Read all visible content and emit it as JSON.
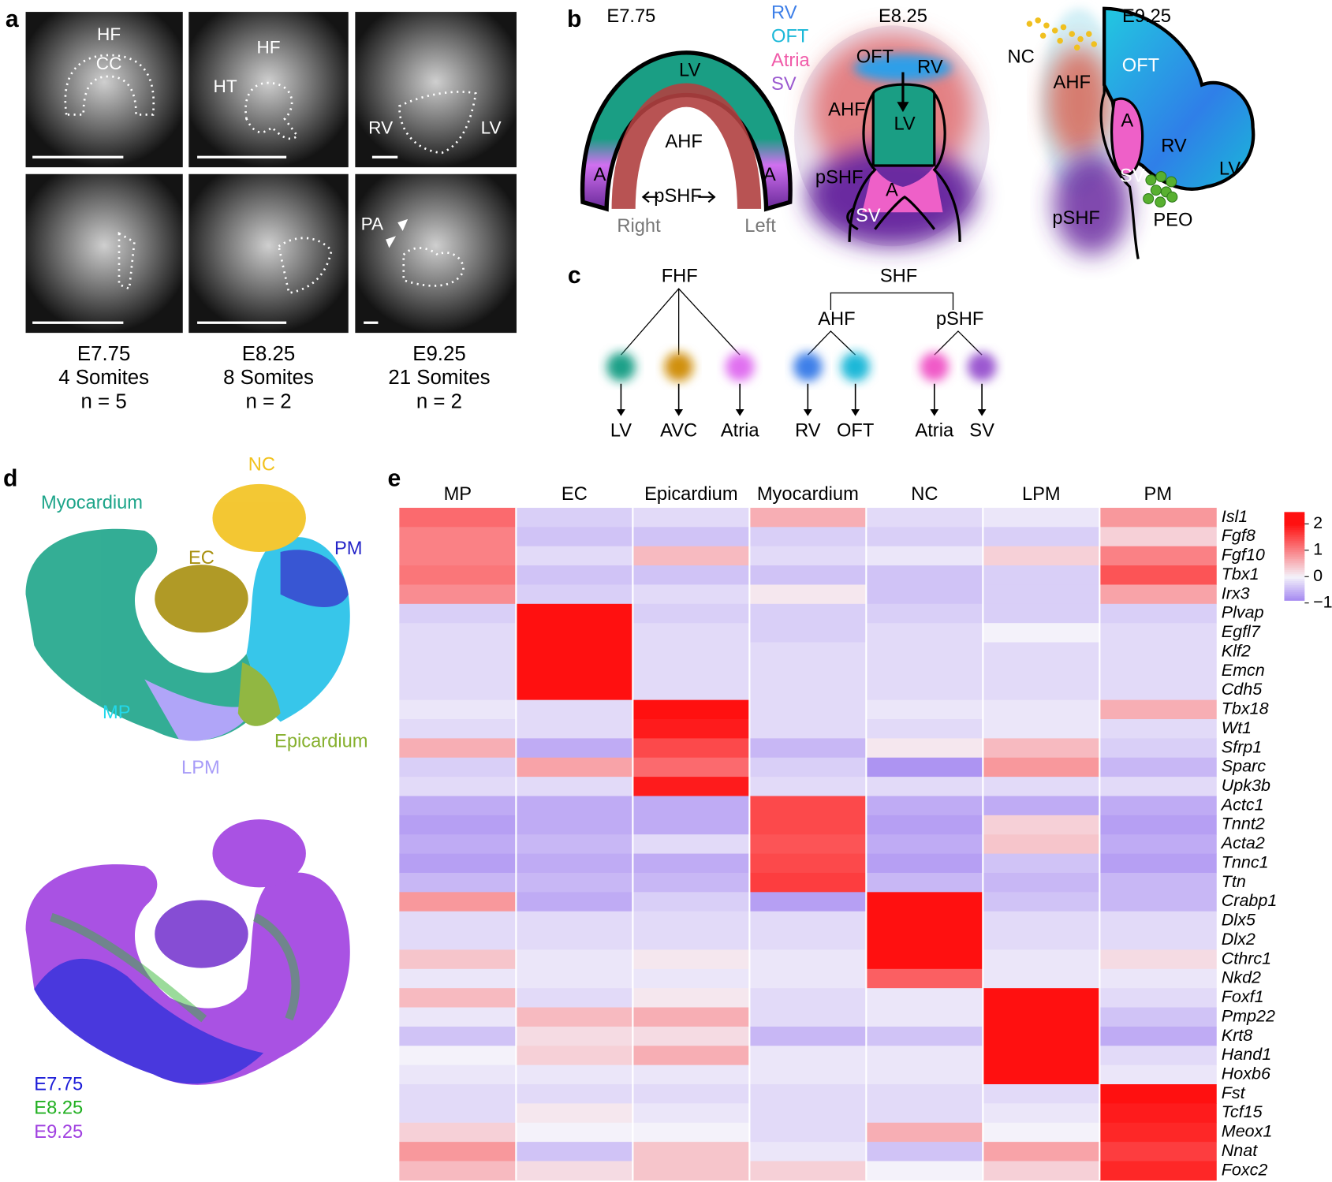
{
  "panel_a": {
    "label": "a",
    "images": [
      {
        "labels": [
          "HF",
          "CC"
        ]
      },
      {
        "labels": [
          "HF",
          "HT"
        ]
      },
      {
        "labels": [
          "RV",
          "LV"
        ]
      },
      {
        "labels": []
      },
      {
        "labels": []
      },
      {
        "labels": [
          "PA"
        ]
      }
    ],
    "captions": [
      {
        "stage": "E7.75",
        "somites": "4 Somites",
        "n": "n = 5"
      },
      {
        "stage": "E8.25",
        "somites": "8 Somites",
        "n": "n = 2"
      },
      {
        "stage": "E9.25",
        "somites": "21 Somites",
        "n": "n = 2"
      }
    ]
  },
  "panel_b": {
    "label": "b",
    "legend": [
      "RV",
      "OFT",
      "Atria",
      "SV"
    ],
    "e775": {
      "stage": "E7.75",
      "labels": [
        "LV",
        "AHF",
        "A",
        "A",
        "pSHF",
        "Right",
        "Left"
      ]
    },
    "e825": {
      "stage": "E8.25",
      "labels": [
        "OFT",
        "RV",
        "AHF",
        "LV",
        "pSHF",
        "A",
        "SV"
      ]
    },
    "e925": {
      "stage": "E9.25",
      "labels": [
        "NC",
        "AHF",
        "OFT",
        "A",
        "RV",
        "LV",
        "SV",
        "pSHF",
        "PEO"
      ]
    }
  },
  "panel_c": {
    "label": "c",
    "fhf": {
      "label": "FHF",
      "children": [
        "LV",
        "AVC",
        "Atria"
      ]
    },
    "shf": {
      "label": "SHF",
      "branches": [
        {
          "label": "AHF",
          "children": [
            "RV",
            "OFT"
          ]
        },
        {
          "label": "pSHF",
          "children": [
            "Atria",
            "SV"
          ]
        }
      ]
    }
  },
  "panel_d": {
    "label": "d",
    "clusters": [
      {
        "name": "Myocardium",
        "color": "#1ea58a"
      },
      {
        "name": "NC",
        "color": "#f2c21e"
      },
      {
        "name": "EC",
        "color": "#a8900f"
      },
      {
        "name": "PM",
        "color": "#2424c8"
      },
      {
        "name": "MP",
        "color": "#22d8ea"
      },
      {
        "name": "Epicardium",
        "color": "#86b02e"
      },
      {
        "name": "LPM",
        "color": "#a89cf8"
      }
    ],
    "legend": [
      {
        "name": "E7.75",
        "color": "#1c1cd8"
      },
      {
        "name": "E8.25",
        "color": "#22b022"
      },
      {
        "name": "E9.25",
        "color": "#a040e0"
      }
    ]
  },
  "panel_e": {
    "label": "e",
    "type": "heatmap",
    "columns": [
      "MP",
      "EC",
      "Epicardium",
      "Myocardium",
      "NC",
      "LPM",
      "PM"
    ],
    "rows": [
      "Isl1",
      "Fgf8",
      "Fgf10",
      "Tbx1",
      "Irx3",
      "Plvap",
      "Egfl7",
      "Klf2",
      "Emcn",
      "Cdh5",
      "Tbx18",
      "Wt1",
      "Sfrp1",
      "Sparc",
      "Upk3b",
      "Actc1",
      "Tnnt2",
      "Acta2",
      "Tnnc1",
      "Ttn",
      "Crabp1",
      "Dlx5",
      "Dlx2",
      "Cthrc1",
      "Nkd2",
      "Foxf1",
      "Pmp22",
      "Krt8",
      "Hand1",
      "Hoxb6",
      "Fst",
      "Tcf15",
      "Meox1",
      "Nnat",
      "Foxc2"
    ],
    "values": [
      [
        1.2,
        -0.3,
        -0.2,
        0.6,
        -0.2,
        -0.1,
        0.8
      ],
      [
        1.0,
        -0.4,
        -0.4,
        -0.3,
        -0.3,
        -0.3,
        0.3
      ],
      [
        1.0,
        -0.2,
        0.5,
        -0.2,
        -0.1,
        0.3,
        1.0
      ],
      [
        1.1,
        -0.4,
        -0.4,
        -0.4,
        -0.4,
        -0.3,
        1.4
      ],
      [
        0.9,
        -0.3,
        -0.2,
        0.1,
        -0.4,
        -0.3,
        0.7
      ],
      [
        -0.3,
        2.3,
        -0.3,
        -0.3,
        -0.3,
        -0.3,
        -0.3
      ],
      [
        -0.2,
        2.2,
        -0.2,
        -0.3,
        -0.2,
        0,
        -0.2
      ],
      [
        -0.2,
        2.0,
        -0.2,
        -0.2,
        -0.2,
        -0.2,
        -0.2
      ],
      [
        -0.2,
        2.2,
        -0.2,
        -0.2,
        -0.2,
        -0.2,
        -0.2
      ],
      [
        -0.2,
        2.3,
        -0.2,
        -0.2,
        -0.2,
        -0.2,
        -0.2
      ],
      [
        -0.1,
        -0.2,
        2.0,
        -0.2,
        -0.1,
        -0.1,
        0.6
      ],
      [
        -0.2,
        -0.2,
        1.9,
        -0.2,
        -0.2,
        -0.1,
        -0.2
      ],
      [
        0.6,
        -0.6,
        1.5,
        -0.5,
        0.1,
        0.5,
        -0.3
      ],
      [
        -0.3,
        0.7,
        1.2,
        -0.3,
        -0.8,
        0.8,
        -0.5
      ],
      [
        -0.2,
        -0.2,
        1.9,
        -0.2,
        -0.2,
        -0.2,
        -0.2
      ],
      [
        -0.6,
        -0.6,
        -0.6,
        1.5,
        -0.6,
        -0.6,
        -0.6
      ],
      [
        -0.7,
        -0.6,
        -0.6,
        1.5,
        -0.7,
        0.3,
        -0.7
      ],
      [
        -0.6,
        -0.5,
        -0.2,
        1.4,
        -0.6,
        0.4,
        -0.6
      ],
      [
        -0.7,
        -0.6,
        -0.6,
        1.5,
        -0.7,
        -0.4,
        -0.7
      ],
      [
        -0.5,
        -0.5,
        -0.5,
        1.6,
        -0.5,
        -0.5,
        -0.5
      ],
      [
        0.8,
        -0.6,
        -0.3,
        -0.7,
        2.0,
        -0.4,
        -0.5
      ],
      [
        -0.2,
        -0.2,
        -0.2,
        -0.2,
        2.0,
        -0.2,
        -0.2
      ],
      [
        -0.2,
        -0.2,
        -0.2,
        -0.2,
        2.1,
        -0.2,
        -0.2
      ],
      [
        0.4,
        -0.1,
        0.1,
        -0.1,
        2.0,
        -0.1,
        0.2
      ],
      [
        -0.1,
        -0.1,
        -0.1,
        -0.1,
        1.3,
        -0.1,
        -0.1
      ],
      [
        0.5,
        -0.2,
        0.1,
        -0.2,
        -0.1,
        2.2,
        -0.2
      ],
      [
        -0.1,
        0.5,
        0.6,
        -0.2,
        -0.1,
        2.2,
        -0.4
      ],
      [
        -0.4,
        0.2,
        0.2,
        -0.5,
        -0.4,
        2.2,
        -0.6
      ],
      [
        0.0,
        0.3,
        0.6,
        -0.1,
        -0.1,
        2.2,
        -0.2
      ],
      [
        -0.1,
        -0.1,
        -0.1,
        -0.1,
        -0.1,
        2.0,
        -0.1
      ],
      [
        -0.2,
        -0.2,
        -0.2,
        -0.2,
        -0.2,
        -0.2,
        2.0
      ],
      [
        -0.2,
        0.1,
        -0.1,
        -0.2,
        -0.2,
        -0.1,
        1.9
      ],
      [
        0.3,
        0,
        0,
        -0.2,
        0.6,
        0,
        1.8
      ],
      [
        0.8,
        -0.4,
        0.4,
        -0.1,
        -0.4,
        0.7,
        1.6
      ],
      [
        0.5,
        0.2,
        0.4,
        0.3,
        0,
        0.3,
        1.8
      ]
    ],
    "colors": {
      "low": "#9b7cf0",
      "mid": "#f4f2fa",
      "high": "#ff1010"
    },
    "colorbar": {
      "ylim": [
        -0.9,
        2.45
      ],
      "yticks": [
        2,
        1,
        0,
        {
          "value": -1,
          "label": "−1"
        }
      ]
    }
  }
}
